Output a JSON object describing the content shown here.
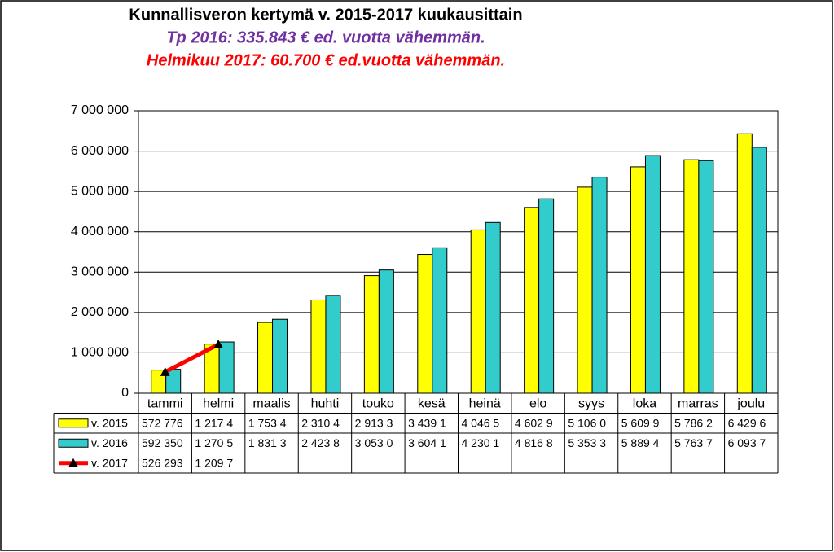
{
  "chart_data": {
    "type": "bar",
    "title": "Kunnallisveron kertymä v. 2015-2017 kuukausittain",
    "subtitle": "Tp 2016: 335.843 € ed. vuotta vähemmän.",
    "annotation": "Helmikuu 2017: 60.700 € ed.vuotta vähemmän.",
    "categories": [
      "tammi",
      "helmi",
      "maalis",
      "huhti",
      "touko",
      "kesä",
      "heinä",
      "elo",
      "syys",
      "loka",
      "marras",
      "joulu"
    ],
    "series": [
      {
        "name": "v. 2015",
        "type": "bar",
        "color": "#ffff00",
        "values": [
          572776,
          1217400,
          1753400,
          2310400,
          2913300,
          3439100,
          4046500,
          4602900,
          5106000,
          5609900,
          5786200,
          6429600
        ],
        "value_labels": [
          "572 776",
          "1 217 4",
          "1 753 4",
          "2 310 4",
          "2 913 3",
          "3 439 1",
          "4 046 5",
          "4 602 9",
          "5 106 0",
          "5 609 9",
          "5 786 2",
          "6 429 6"
        ]
      },
      {
        "name": "v. 2016",
        "type": "bar",
        "color": "#33cccc",
        "values": [
          592350,
          1270500,
          1831300,
          2423800,
          3053000,
          3604100,
          4230100,
          4816800,
          5353300,
          5889400,
          5763700,
          6093700
        ],
        "value_labels": [
          "592 350",
          "1 270 5",
          "1 831 3",
          "2 423 8",
          "3 053 0",
          "3 604 1",
          "4 230 1",
          "4 816 8",
          "5 353 3",
          "5 889 4",
          "5 763 7",
          "6 093 7"
        ]
      },
      {
        "name": "v. 2017",
        "type": "line",
        "color": "#ff0000",
        "values": [
          526293,
          1209700,
          null,
          null,
          null,
          null,
          null,
          null,
          null,
          null,
          null,
          null
        ],
        "value_labels": [
          "526 293",
          "1 209 7",
          null,
          null,
          null,
          null,
          null,
          null,
          null,
          null,
          null,
          null
        ]
      }
    ],
    "ylim": [
      0,
      7000000
    ],
    "yticks": [
      0,
      {
        "value": 1000000,
        "label": "1 000 000"
      },
      {
        "value": 2000000,
        "label": "2 000 000"
      },
      {
        "value": 3000000,
        "label": "3 000 000"
      },
      {
        "value": 4000000,
        "label": "4 000 000"
      },
      {
        "value": 5000000,
        "label": "5 000 000"
      },
      {
        "value": 6000000,
        "label": "6 000 000"
      },
      {
        "value": 7000000,
        "label": "7 000 000"
      }
    ],
    "grid": true
  }
}
